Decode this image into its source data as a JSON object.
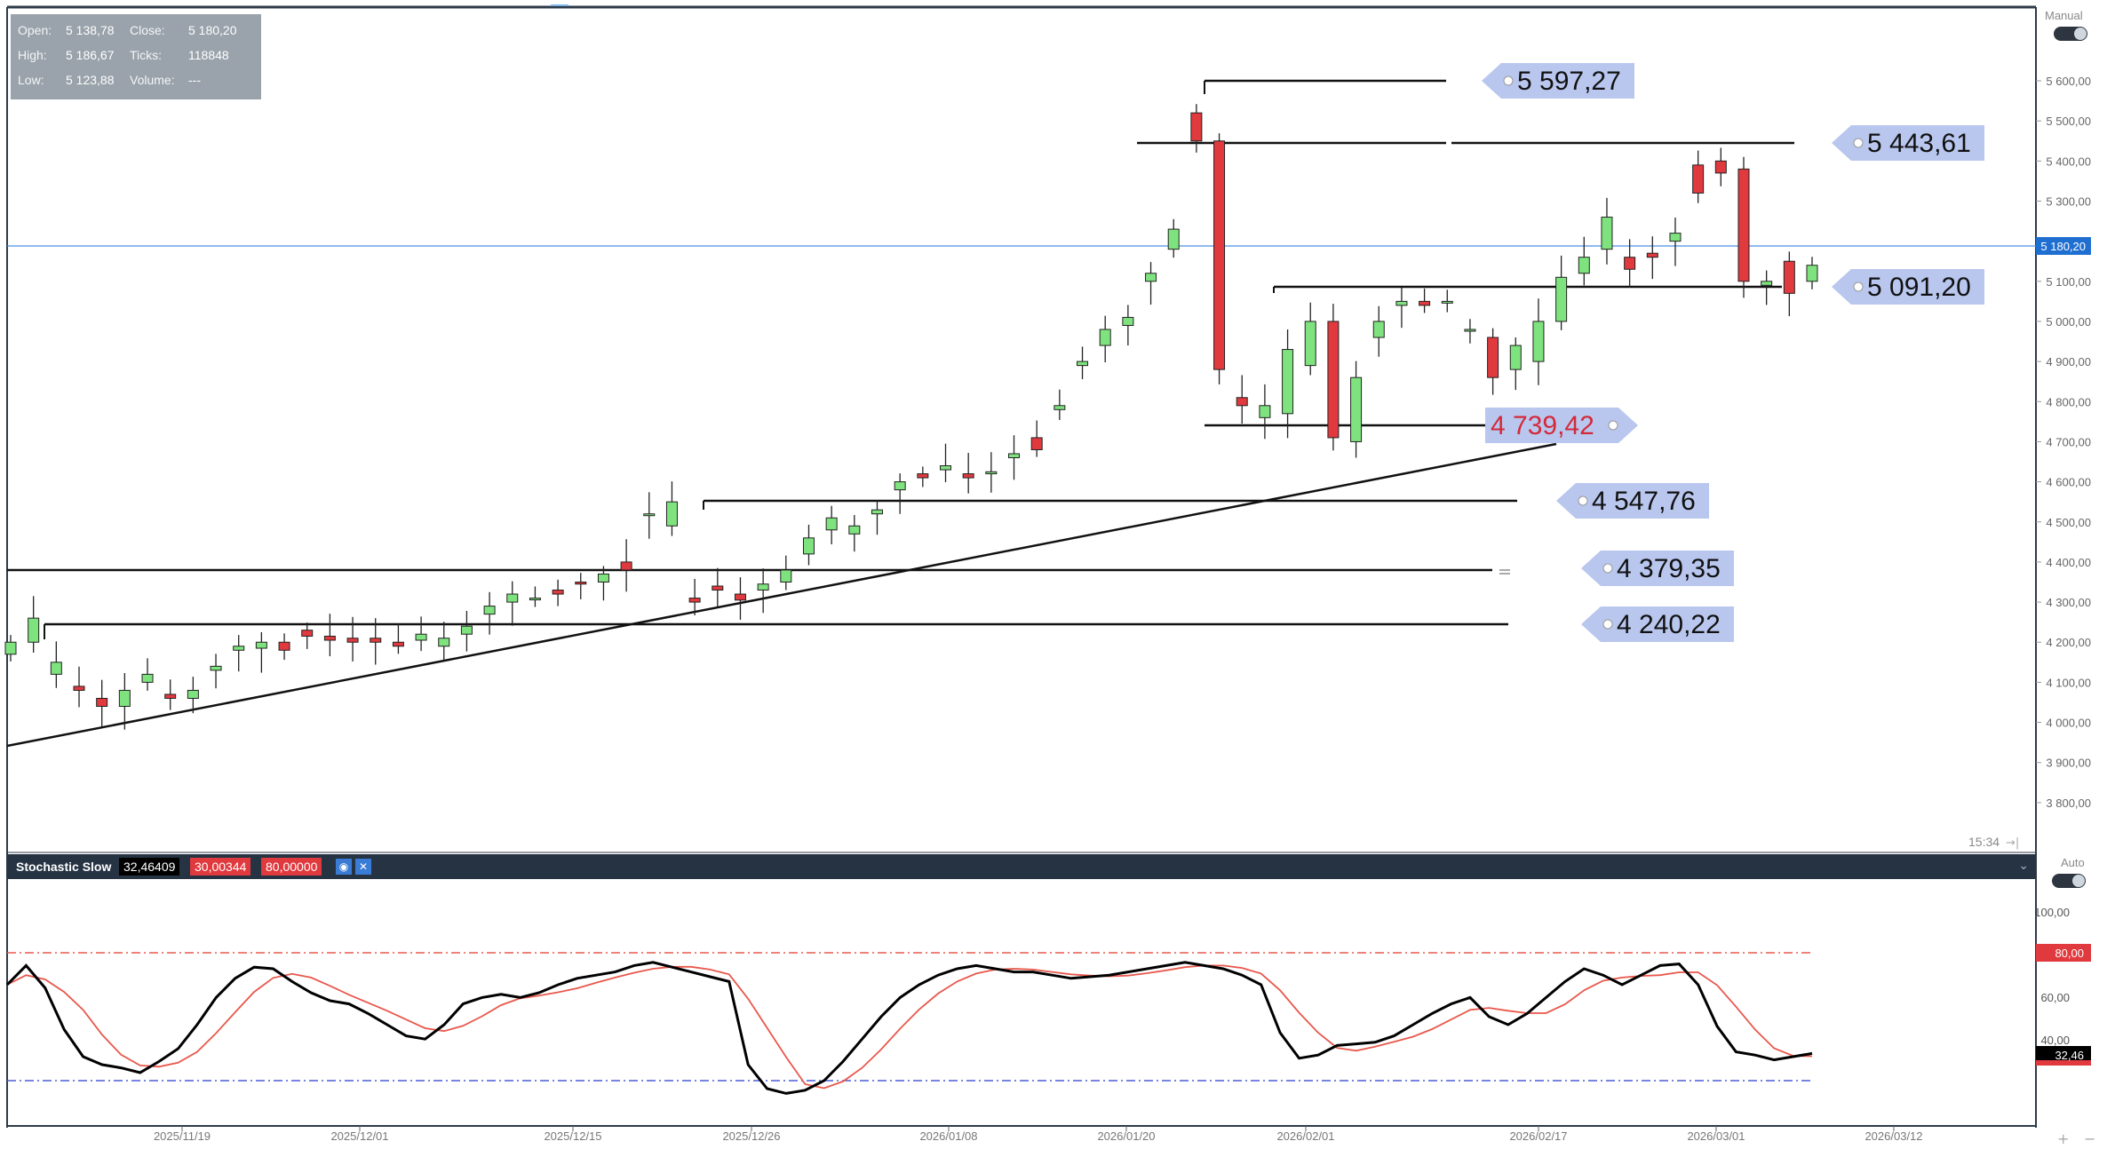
{
  "info": {
    "open_label": "Open:",
    "open_value": "5 138,78",
    "close_label": "Close:",
    "close_value": "5 180,20",
    "high_label": "High:",
    "high_value": "5 186,67",
    "ticks_label": "Ticks:",
    "ticks_value": "118848",
    "low_label": "Low:",
    "low_value": "5 123,88",
    "volume_label": "Volume:",
    "volume_value": "---"
  },
  "top_right": {
    "mode_label": "Manual"
  },
  "price_axis": {
    "ticks": [
      "5 600,00",
      "5 500,00",
      "5 400,00",
      "5 300,00",
      "5 100,00",
      "5 000,00",
      "4 900,00",
      "4 800,00",
      "4 700,00",
      "4 600,00",
      "4 500,00",
      "4 400,00",
      "4 300,00",
      "4 200,00",
      "4 100,00",
      "4 000,00",
      "3 900,00",
      "3 800,00"
    ],
    "current_price_label": "5 180,20"
  },
  "time_label": "15:34",
  "price_levels": [
    "5 597,27",
    "5 443,61",
    "5 091,20",
    "4 739,42",
    "4 547,76",
    "4 379,35",
    "4 240,22"
  ],
  "oscillator": {
    "name": "Stochastic Slow",
    "k_value": "32,46409",
    "d_value": "30,00344",
    "level_value": "80,00000",
    "auto_label": "Auto",
    "axis_ticks": [
      "100,00",
      "60,00",
      "40,00"
    ],
    "level_label": "80,00",
    "current_label": "32,46"
  },
  "time_axis": [
    "2025/11/19",
    "2025/12/01",
    "2025/12/15",
    "2025/12/26",
    "2026/01/08",
    "2026/01/20",
    "2026/02/01",
    "2026/02/17",
    "2026/03/01",
    "2026/03/12"
  ],
  "colors": {
    "up_candle": "#7ee37e",
    "down_candle": "#e0393e",
    "current_price_line": "#4a90e2",
    "level_tag": "#b9c7ef",
    "red_level_text": "#d22a3a",
    "stoch_k": "#000000",
    "stoch_d": "#e8584c",
    "line_80": "#e8584c",
    "line_20": "#4a5cd6"
  },
  "icons": [
    "eye-icon",
    "close-icon",
    "chevron-down-icon",
    "plus-icon"
  ],
  "chart_data": {
    "type": "candlestick",
    "x": [
      "2025/11/14",
      "2025/11/17",
      "2025/11/18",
      "2025/11/19",
      "2025/11/20",
      "2025/11/21",
      "2025/11/24",
      "2025/11/25",
      "2025/11/26",
      "2025/11/27",
      "2025/11/28",
      "2025/12/01",
      "2025/12/02",
      "2025/12/03",
      "2025/12/04",
      "2025/12/05",
      "2025/12/08",
      "2025/12/09",
      "2025/12/10",
      "2025/12/11",
      "2025/12/12",
      "2025/12/15",
      "2025/12/16",
      "2025/12/17",
      "2025/12/18",
      "2025/12/19",
      "2025/12/22",
      "2025/12/23",
      "2025/12/24",
      "2025/12/26",
      "2025/12/29",
      "2025/12/30",
      "2025/12/31",
      "2026/01/02",
      "2026/01/05",
      "2026/01/06",
      "2026/01/07",
      "2026/01/08",
      "2026/01/09",
      "2026/01/12",
      "2026/01/13",
      "2026/01/14",
      "2026/01/15",
      "2026/01/16",
      "2026/01/19",
      "2026/01/20",
      "2026/01/21",
      "2026/01/22",
      "2026/01/23",
      "2026/01/26",
      "2026/01/27",
      "2026/01/28",
      "2026/01/29",
      "2026/01/30",
      "2026/02/02",
      "2026/02/03",
      "2026/02/04",
      "2026/02/05",
      "2026/02/06",
      "2026/02/09",
      "2026/02/10",
      "2026/02/11",
      "2026/02/12",
      "2026/02/13",
      "2026/02/16",
      "2026/02/17",
      "2026/02/18",
      "2026/02/19",
      "2026/02/20",
      "2026/02/23",
      "2026/02/24",
      "2026/02/25",
      "2026/02/26",
      "2026/02/27",
      "2026/03/02",
      "2026/03/03",
      "2026/03/04",
      "2026/03/05",
      "2026/03/06",
      "2026/03/09"
    ],
    "open": [
      4170,
      4200,
      4120,
      4090,
      4060,
      4040,
      4100,
      4070,
      4060,
      4130,
      4180,
      4185,
      4200,
      4230,
      4215,
      4210,
      4210,
      4200,
      4205,
      4190,
      4220,
      4270,
      4300,
      4310,
      4330,
      4350,
      4350,
      4400,
      4520,
      4490,
      4310,
      4340,
      4320,
      4330,
      4350,
      4420,
      4480,
      4470,
      4520,
      4580,
      4620,
      4630,
      4620,
      4620,
      4660,
      4710,
      4780,
      4890,
      4940,
      4990,
      5100,
      5180,
      5520,
      5450,
      4810,
      4760,
      4770,
      4890,
      5000,
      4700,
      4960,
      5040,
      5050,
      5050,
      4980,
      4960,
      4880,
      4900,
      5000,
      5120,
      5180,
      5160,
      5170,
      5200,
      5390,
      5400,
      5380,
      5090,
      5150,
      5100
    ],
    "close": [
      4200,
      4260,
      4150,
      4080,
      4040,
      4080,
      4120,
      4060,
      4080,
      4140,
      4190,
      4200,
      4180,
      4215,
      4205,
      4200,
      4200,
      4190,
      4220,
      4210,
      4240,
      4290,
      4320,
      4310,
      4320,
      4345,
      4370,
      4380,
      4520,
      4550,
      4300,
      4330,
      4305,
      4345,
      4380,
      4460,
      4510,
      4490,
      4530,
      4600,
      4610,
      4640,
      4610,
      4625,
      4670,
      4680,
      4790,
      4900,
      4980,
      5010,
      5120,
      5230,
      5450,
      4880,
      4790,
      4790,
      4930,
      5000,
      4710,
      4860,
      5000,
      5050,
      5040,
      5050,
      4980,
      4860,
      4940,
      5000,
      5110,
      5160,
      5260,
      5130,
      5160,
      5220,
      5320,
      5370,
      5100,
      5100,
      5070,
      5140
    ]
  }
}
